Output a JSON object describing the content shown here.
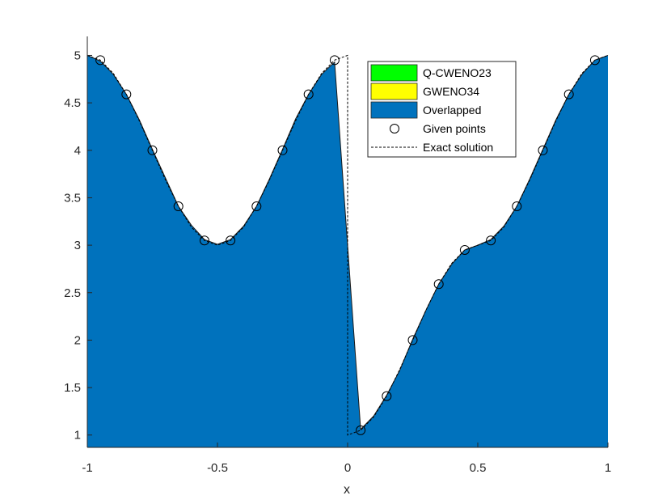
{
  "chart_data": {
    "type": "area",
    "xlabel": "x",
    "ylabel": "",
    "xlim": [
      -1,
      1
    ],
    "ylim": [
      0.87,
      5.2
    ],
    "x_ticks": [
      "-1",
      "-0.5",
      "0",
      "0.5",
      "1"
    ],
    "x_tick_values": [
      -1,
      -0.5,
      0,
      0.5,
      1
    ],
    "y_ticks": [
      "1",
      "1.5",
      "2",
      "2.5",
      "3",
      "3.5",
      "4",
      "4.5",
      "5"
    ],
    "y_tick_values": [
      1,
      1.5,
      2,
      2.5,
      3,
      3.5,
      4,
      4.5,
      5
    ],
    "grid": false,
    "legend_position": "top-right",
    "legend": [
      {
        "label": "Q-CWENO23",
        "kind": "patch",
        "color": "#00ff00"
      },
      {
        "label": "GWENO34",
        "kind": "patch",
        "color": "#ffff00"
      },
      {
        "label": "Overlapped",
        "kind": "patch",
        "color": "#0072bd"
      },
      {
        "label": "Given points",
        "kind": "marker",
        "color": "#000000"
      },
      {
        "label": "Exact solution",
        "kind": "dashed-line",
        "color": "#000000"
      }
    ],
    "series": [
      {
        "name": "Overlapped",
        "color": "#0072bd",
        "x": [
          -1,
          -0.95,
          -0.9,
          -0.85,
          -0.8,
          -0.75,
          -0.7,
          -0.65,
          -0.6,
          -0.55,
          -0.5,
          -0.45,
          -0.4,
          -0.35,
          -0.3,
          -0.25,
          -0.2,
          -0.15,
          -0.1,
          -0.05,
          0.05,
          0.1,
          0.15,
          0.2,
          0.25,
          0.3,
          0.35,
          0.4,
          0.45,
          0.5,
          0.55,
          0.6,
          0.65,
          0.7,
          0.75,
          0.8,
          0.85,
          0.9,
          0.95,
          1
        ],
        "y": [
          5.0,
          4.94,
          4.8,
          4.59,
          4.32,
          4.01,
          3.71,
          3.41,
          3.21,
          3.06,
          3.01,
          3.06,
          3.2,
          3.41,
          3.7,
          4.01,
          4.33,
          4.59,
          4.8,
          4.93,
          1.06,
          1.2,
          1.42,
          1.68,
          2.01,
          2.31,
          2.59,
          2.8,
          2.95,
          3.0,
          3.06,
          3.2,
          3.41,
          3.7,
          4.01,
          4.32,
          4.59,
          4.8,
          4.95,
          5.0
        ]
      },
      {
        "name": "Exact solution",
        "style": "dashed",
        "x": [
          -1,
          -0.95,
          -0.9,
          -0.85,
          -0.8,
          -0.75,
          -0.7,
          -0.65,
          -0.6,
          -0.55,
          -0.5,
          -0.45,
          -0.4,
          -0.35,
          -0.3,
          -0.25,
          -0.2,
          -0.15,
          -0.1,
          -0.05,
          0,
          0,
          0.05,
          0.1,
          0.15,
          0.2,
          0.25,
          0.3,
          0.35,
          0.4,
          0.45,
          0.5,
          0.55,
          0.6,
          0.65,
          0.7,
          0.75,
          0.8,
          0.85,
          0.9,
          0.95,
          1
        ],
        "y": [
          5.0,
          4.95,
          4.81,
          4.59,
          4.31,
          4.0,
          3.69,
          3.41,
          3.19,
          3.05,
          3.0,
          3.05,
          3.19,
          3.41,
          3.69,
          4.0,
          4.31,
          4.59,
          4.81,
          4.95,
          5.0,
          1.0,
          1.05,
          1.19,
          1.41,
          1.69,
          2.0,
          2.31,
          2.59,
          2.81,
          2.95,
          3.0,
          3.05,
          3.19,
          3.41,
          3.69,
          4.0,
          4.31,
          4.59,
          4.81,
          4.95,
          5.0
        ]
      },
      {
        "name": "Given points",
        "type": "scatter",
        "x": [
          -0.95,
          -0.85,
          -0.75,
          -0.65,
          -0.55,
          -0.45,
          -0.35,
          -0.25,
          -0.15,
          -0.05,
          0.05,
          0.15,
          0.25,
          0.35,
          0.45,
          0.55,
          0.65,
          0.75,
          0.85,
          0.95
        ],
        "y": [
          4.95,
          4.59,
          4.0,
          3.41,
          3.05,
          3.05,
          3.41,
          4.0,
          4.59,
          4.95,
          1.05,
          1.41,
          2.0,
          2.59,
          2.95,
          3.05,
          3.41,
          4.0,
          4.59,
          4.95
        ]
      }
    ]
  }
}
